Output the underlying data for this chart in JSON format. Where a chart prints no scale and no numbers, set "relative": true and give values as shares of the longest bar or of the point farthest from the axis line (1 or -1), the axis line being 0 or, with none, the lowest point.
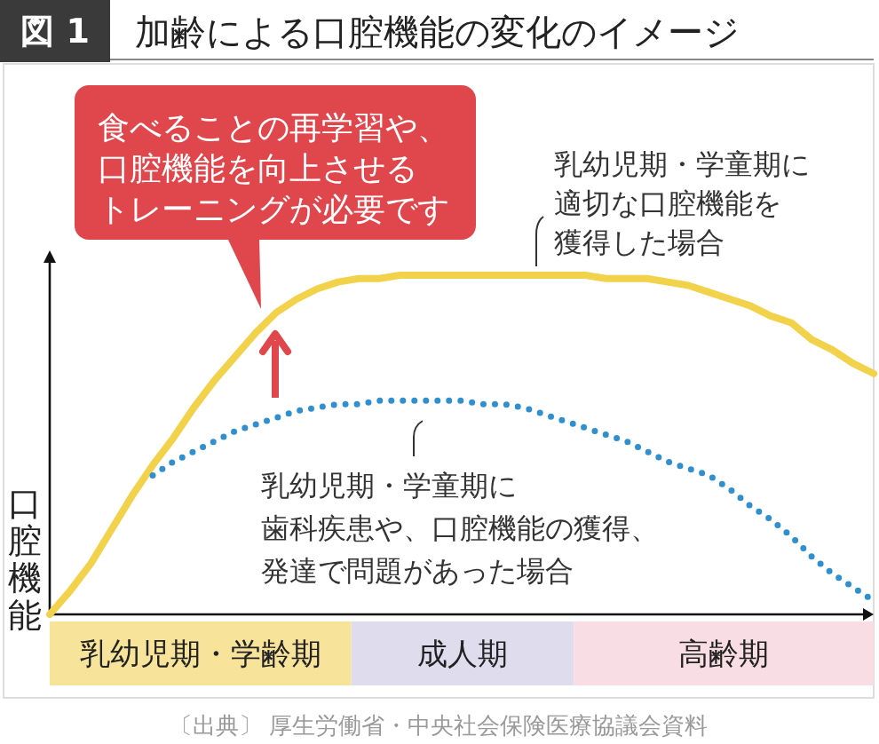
{
  "chart_data": {
    "type": "line",
    "title": "加齢による口腔機能の変化のイメージ",
    "ylabel": "口腔機能",
    "relative": true,
    "categories": [
      null,
      null,
      null,
      null,
      null,
      null,
      null,
      null,
      null,
      null,
      null,
      null,
      null,
      null,
      null,
      null,
      null,
      null,
      null,
      null,
      null,
      null,
      null,
      null,
      null,
      null,
      null,
      null,
      null,
      null,
      null,
      null,
      null,
      null,
      null,
      null,
      null,
      null,
      null,
      null,
      null
    ],
    "series": [
      {
        "color": "#f2d24a",
        "line_style": "solid",
        "values": [
          0,
          0.07,
          0.15,
          0.25,
          0.35,
          0.44,
          0.52,
          0.61,
          0.69,
          0.76,
          0.83,
          0.89,
          0.93,
          0.96,
          0.98,
          0.99,
          0.99,
          1,
          1,
          1,
          1,
          1,
          1,
          1,
          1,
          1,
          1,
          0.99,
          0.99,
          0.99,
          0.98,
          0.97,
          0.95,
          0.93,
          0.91,
          0.88,
          0.86,
          0.81,
          0.78,
          0.74,
          0.71
        ]
      },
      {
        "color": "#2f8fcf",
        "line_style": "dotted",
        "values": [
          null,
          null,
          null,
          null,
          null,
          0.41,
          0.45,
          0.48,
          0.51,
          0.54,
          0.56,
          0.58,
          0.6,
          0.61,
          0.62,
          0.62,
          0.63,
          0.63,
          0.63,
          0.63,
          0.63,
          0.62,
          0.62,
          0.61,
          0.59,
          0.57,
          0.55,
          0.53,
          0.51,
          0.48,
          0.45,
          0.43,
          0.41,
          0.37,
          0.32,
          0.28,
          0.23,
          0.17,
          0.12,
          0.08,
          0.04
        ]
      }
    ],
    "annotations": [
      "図 1",
      "食べることの再学習や、口腔機能を向上させるトレーニングが必要です",
      "乳幼児期・学童期に適切な口腔機能を獲得した場合",
      "乳幼児期・学童期に歯科疾患や、口腔機能の獲得、発達で問題があった場合",
      "〔出典〕 厚生労働省・中央社会保険医療協議会資料",
      "乳幼児期・学齢期",
      "成人期",
      "高齢期"
    ]
  }
}
